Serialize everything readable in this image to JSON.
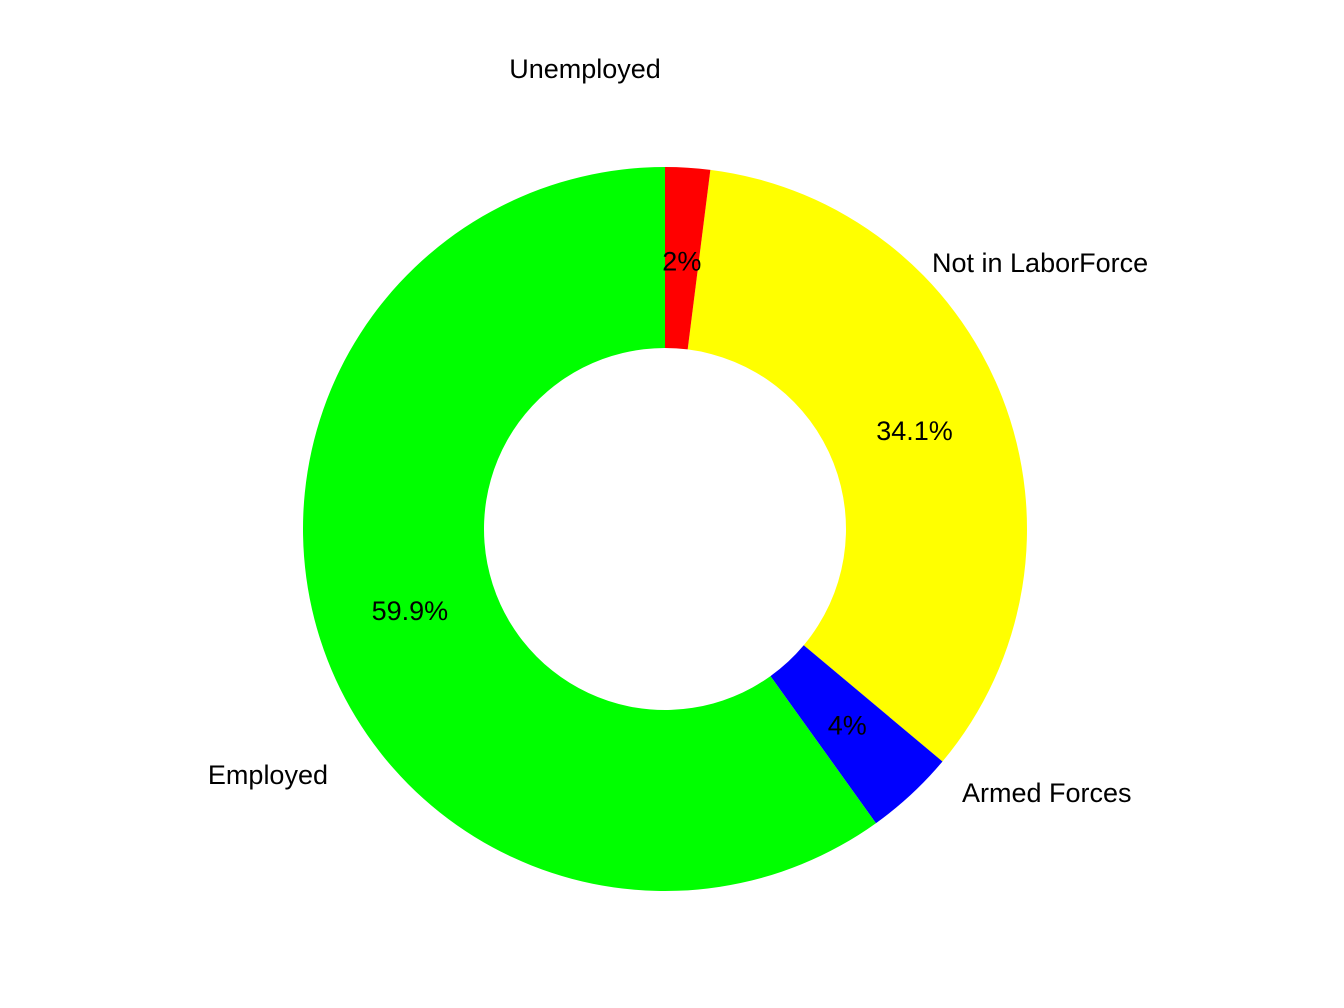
{
  "chart_data": {
    "type": "pie",
    "variant": "donut",
    "slices": [
      {
        "label": "Not in LaborForce",
        "value": 34.1,
        "value_label": "34.1%",
        "color": "#FFFF00"
      },
      {
        "label": "Armed Forces",
        "value": 4.0,
        "value_label": "4%",
        "color": "#0000FF"
      },
      {
        "label": "Employed",
        "value": 59.9,
        "value_label": "59.9%",
        "color": "#00FF00"
      },
      {
        "label": "Unemployed",
        "value": 2.0,
        "value_label": "2%",
        "color": "#FF0000"
      }
    ],
    "start_angle_deg": 7.2,
    "direction": "clockwise",
    "legend": "none"
  }
}
